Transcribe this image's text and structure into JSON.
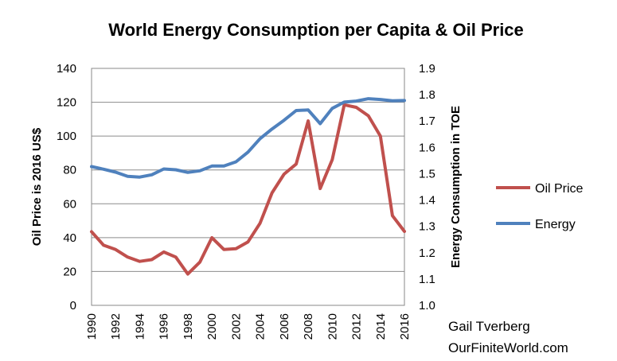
{
  "chart_data": {
    "type": "line",
    "title": "World Energy Consumption per Capita & Oil Price",
    "ylabel_left": "Oil Price is 2016 US$",
    "ylabel_right": "Energy Consumption in TOE",
    "ylim_left": [
      0,
      140
    ],
    "ylim_right": [
      1.0,
      1.9
    ],
    "xlim": [
      1990,
      2016
    ],
    "x_tick_labels": [
      "1990",
      "1992",
      "1994",
      "1996",
      "1998",
      "2000",
      "2002",
      "2004",
      "2006",
      "2008",
      "2010",
      "2012",
      "2014",
      "2016"
    ],
    "y_left_tick_labels": [
      "0",
      "20",
      "40",
      "60",
      "80",
      "100",
      "120",
      "140"
    ],
    "y_right_tick_labels": [
      "1.0",
      "1.1",
      "1.2",
      "1.3",
      "1.4",
      "1.5",
      "1.6",
      "1.7",
      "1.8",
      "1.9"
    ],
    "grid": true,
    "legend_position": "right",
    "x": [
      1990,
      1991,
      1992,
      1993,
      1994,
      1995,
      1996,
      1997,
      1998,
      1999,
      2000,
      2001,
      2002,
      2003,
      2004,
      2005,
      2006,
      2007,
      2008,
      2009,
      2010,
      2011,
      2012,
      2013,
      2014,
      2015,
      2016
    ],
    "series": [
      {
        "name": "Oil Price",
        "axis": "left",
        "color": "#c0504d",
        "values": [
          43.5,
          35.5,
          33,
          28.5,
          26,
          27,
          31.5,
          28.5,
          18.5,
          25.5,
          40,
          33,
          33.5,
          37.5,
          48.5,
          66.5,
          77.5,
          83.5,
          109,
          69,
          86,
          118.5,
          117,
          112,
          100,
          53,
          43.7
        ]
      },
      {
        "name": "Energy",
        "axis": "right",
        "color": "#4f81bd",
        "values": [
          1.527,
          1.517,
          1.506,
          1.49,
          1.487,
          1.496,
          1.518,
          1.515,
          1.505,
          1.511,
          1.529,
          1.529,
          1.545,
          1.582,
          1.633,
          1.67,
          1.703,
          1.74,
          1.742,
          1.69,
          1.748,
          1.772,
          1.776,
          1.785,
          1.782,
          1.777,
          1.778
        ]
      }
    ],
    "credit_lines": [
      "Gail Tverberg",
      "OurFiniteWorld.com"
    ]
  }
}
